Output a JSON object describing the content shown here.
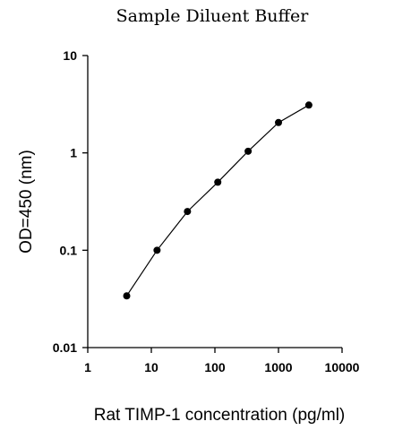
{
  "chart_data": {
    "type": "line",
    "title": "Sample Diluent Buffer",
    "xlabel": "Rat TIMP-1 concentration (pg/ml)",
    "ylabel": "OD=450 (nm)",
    "x_scale": "log",
    "y_scale": "log",
    "xlim": [
      1,
      10000
    ],
    "ylim": [
      0.01,
      10
    ],
    "x_ticks": [
      "1",
      "10",
      "100",
      "1000",
      "10000"
    ],
    "y_ticks": [
      "0.01",
      "0.1",
      "1",
      "10"
    ],
    "grid": false,
    "series": [
      {
        "x": [
          4.1,
          12.3,
          37,
          111,
          333,
          1000,
          3000
        ],
        "y": [
          0.034,
          0.1,
          0.25,
          0.5,
          1.04,
          2.05,
          3.1
        ]
      }
    ]
  }
}
